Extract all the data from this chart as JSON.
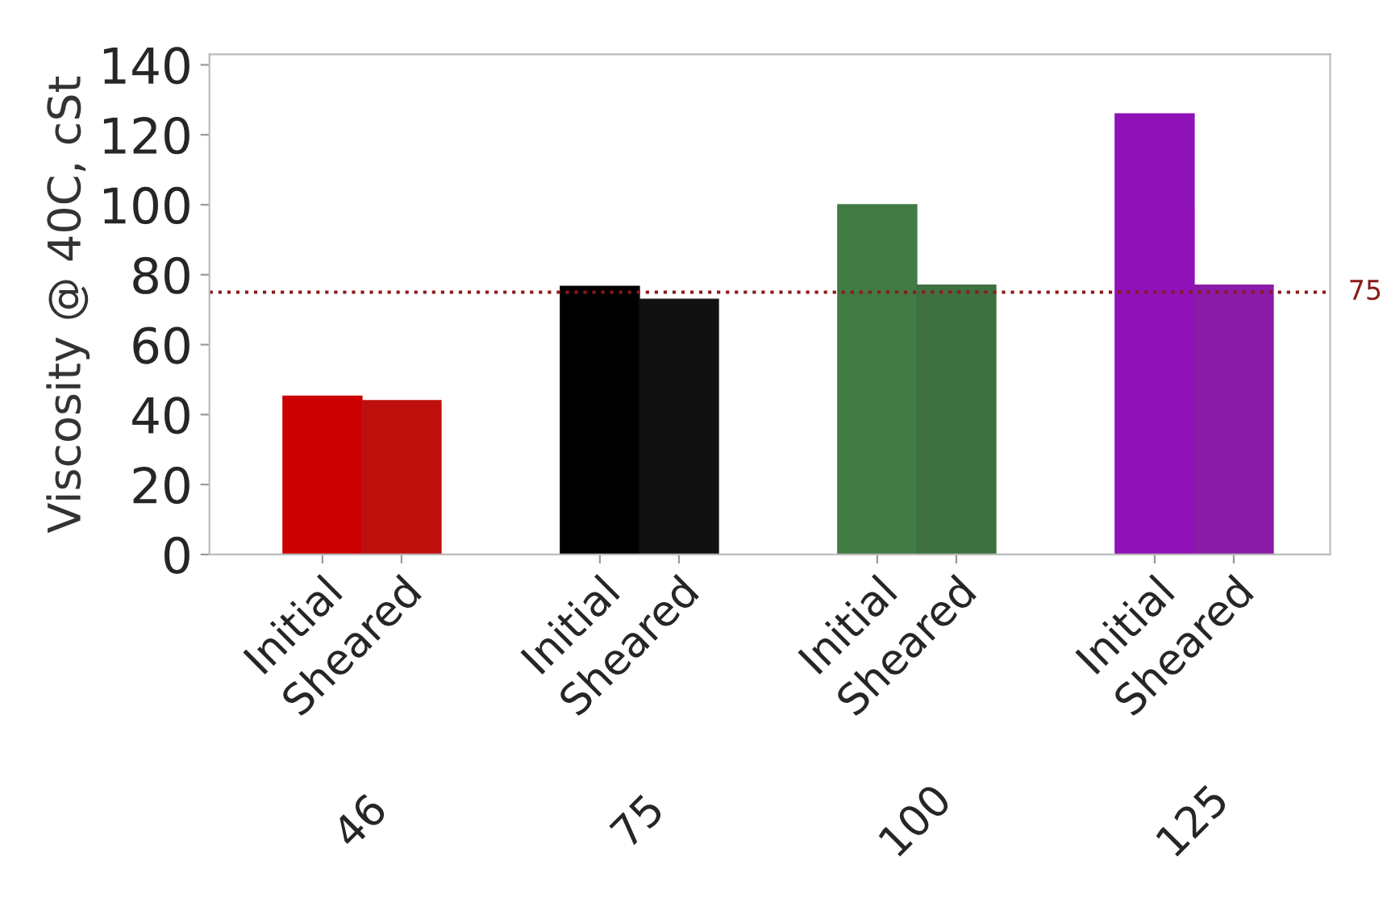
{
  "chart_data": {
    "type": "bar",
    "ylabel": "Viscosity @ 40C, cSt",
    "categories": [
      "46",
      "75",
      "100",
      "125"
    ],
    "series": [
      {
        "name": "Initial",
        "colors": [
          "#cc0000",
          "#000000",
          "#417a43",
          "#8f12b8"
        ],
        "values": [
          45.3,
          76.7,
          100,
          126
        ]
      },
      {
        "name": "Sheared",
        "colors": [
          "#c0100e",
          "#101010",
          "#3f7040",
          "#8a1aa8"
        ],
        "values": [
          44,
          73,
          77,
          77
        ]
      }
    ],
    "ylim": [
      0,
      143
    ],
    "yticks": [
      0,
      20,
      40,
      60,
      80,
      100,
      120,
      140
    ],
    "ref_lines": [
      {
        "axis": "y",
        "value": 75,
        "label": "75",
        "color": "#8b1a1a",
        "line_style": "dotted"
      }
    ],
    "grid": false,
    "legend": false
  }
}
